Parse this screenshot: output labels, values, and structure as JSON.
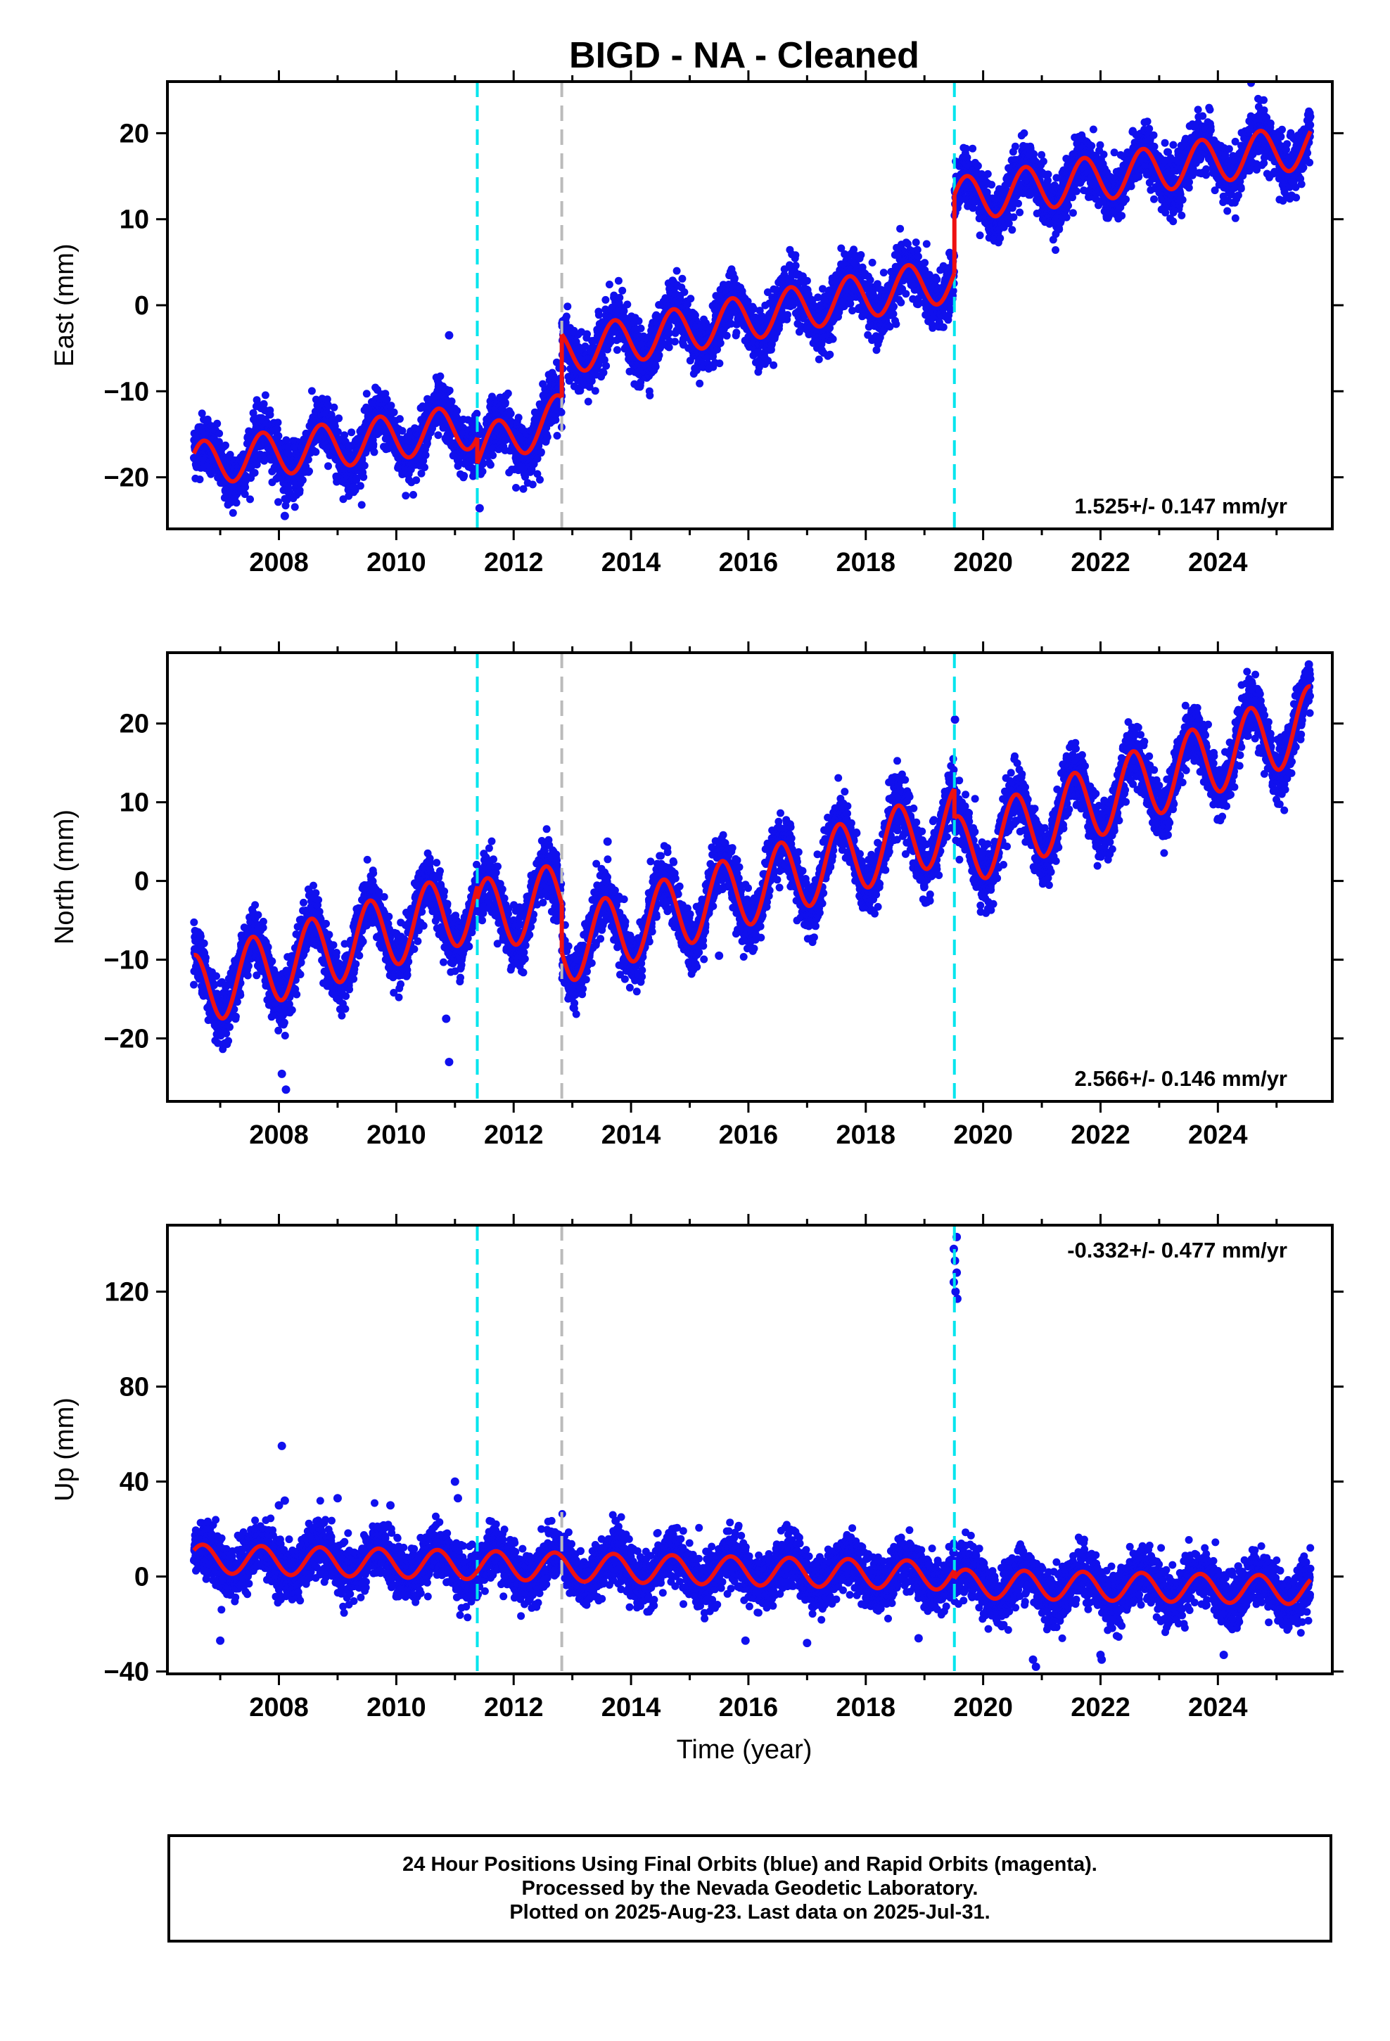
{
  "title": "BIGD  - NA - Cleaned",
  "xlabel": "Time (year)",
  "footer": {
    "line1": "24 Hour Positions Using Final Orbits (blue) and Rapid Orbits (magenta).",
    "line2": "Processed by the Nevada Geodetic Laboratory.",
    "line3": "Plotted on 2025-Aug-23. Last data on 2025-Jul-31."
  },
  "colors": {
    "points": "#1010ee",
    "model": "#ee1111",
    "cyan_line": "#00e5ee",
    "gray_line": "#bbbbbb"
  },
  "chart_data": [
    {
      "type": "scatter",
      "ylabel": "East (mm)",
      "ylim": [
        -26,
        26
      ],
      "xlim": [
        2006.1,
        2025.95
      ],
      "xticks": [
        2008,
        2010,
        2012,
        2014,
        2016,
        2018,
        2020,
        2022,
        2024
      ],
      "yticks": [
        -20,
        -10,
        0,
        10,
        20
      ],
      "rate": "1.525+/- 0.147 mm/yr",
      "rate_position": "bottom-right",
      "data_range": [
        2006.55,
        2025.58
      ],
      "vlines": [
        {
          "x": 2011.38,
          "style": "cyan"
        },
        {
          "x": 2012.82,
          "style": "gray"
        },
        {
          "x": 2019.51,
          "style": "cyan"
        }
      ],
      "model": {
        "segments": [
          {
            "from": 2006.55,
            "to": 2011.38,
            "start": -18.5,
            "slope": 0.93
          },
          {
            "from": 2011.38,
            "to": 2012.82,
            "start": -17.0,
            "slope": 2.9
          },
          {
            "from": 2012.82,
            "to": 2019.51,
            "start": -5.5,
            "slope": 1.28
          },
          {
            "from": 2019.51,
            "to": 2025.58,
            "start": 12.2,
            "slope": 1.05
          }
        ],
        "annual_amplitude": 2.6,
        "peak_phase": 0.72
      },
      "scatter_noise": 1.6,
      "outliers": [
        {
          "x": 2008.1,
          "y": -24.5
        },
        {
          "x": 2010.9,
          "y": -3.5
        },
        {
          "x": 2011.42,
          "y": -23.6
        }
      ]
    },
    {
      "type": "scatter",
      "ylabel": "North (mm)",
      "ylim": [
        -28,
        29
      ],
      "xlim": [
        2006.1,
        2025.95
      ],
      "xticks": [
        2008,
        2010,
        2012,
        2014,
        2016,
        2018,
        2020,
        2022,
        2024
      ],
      "yticks": [
        -20,
        -10,
        0,
        10,
        20
      ],
      "rate": "2.566+/- 0.146 mm/yr",
      "rate_position": "bottom-right",
      "data_range": [
        2006.55,
        2025.58
      ],
      "vlines": [
        {
          "x": 2011.38,
          "style": "cyan"
        },
        {
          "x": 2012.82,
          "style": "gray"
        },
        {
          "x": 2019.51,
          "style": "cyan"
        }
      ],
      "model": {
        "segments": [
          {
            "from": 2006.55,
            "to": 2011.38,
            "start": -14.0,
            "slope": 2.3
          },
          {
            "from": 2011.38,
            "to": 2012.82,
            "start": -4.5,
            "slope": 1.5
          },
          {
            "from": 2012.82,
            "to": 2019.51,
            "start": -8.5,
            "slope": 2.35
          },
          {
            "from": 2019.51,
            "to": 2025.58,
            "start": 3.5,
            "slope": 2.75
          }
        ],
        "annual_amplitude": 4.6,
        "peak_phase": 0.55
      },
      "scatter_noise": 1.8,
      "outliers": [
        {
          "x": 2008.12,
          "y": -26.5
        },
        {
          "x": 2008.05,
          "y": -24.5
        },
        {
          "x": 2010.85,
          "y": -17.5
        },
        {
          "x": 2010.9,
          "y": -23.0
        },
        {
          "x": 2013.6,
          "y": 5.0
        },
        {
          "x": 2015.5,
          "y": -9.5
        },
        {
          "x": 2019.52,
          "y": 20.5
        },
        {
          "x": 2025.55,
          "y": 27.5
        }
      ]
    },
    {
      "type": "scatter",
      "ylabel": "Up (mm)",
      "ylim": [
        -41,
        148
      ],
      "xlim": [
        2006.1,
        2025.95
      ],
      "xticks": [
        2008,
        2010,
        2012,
        2014,
        2016,
        2018,
        2020,
        2022,
        2024
      ],
      "yticks": [
        -40,
        0,
        40,
        80,
        120
      ],
      "rate": "-0.332+/- 0.477 mm/yr",
      "rate_position": "top-right",
      "data_range": [
        2006.55,
        2025.58
      ],
      "vlines": [
        {
          "x": 2011.38,
          "style": "cyan"
        },
        {
          "x": 2012.82,
          "style": "gray"
        },
        {
          "x": 2019.51,
          "style": "cyan"
        }
      ],
      "model": {
        "segments": [
          {
            "from": 2006.55,
            "to": 2019.51,
            "start": 7.5,
            "slope": -0.55
          },
          {
            "from": 2019.51,
            "to": 2025.58,
            "start": -3.0,
            "slope": -0.45
          }
        ],
        "annual_amplitude": 6.0,
        "peak_phase": 0.7
      },
      "scatter_noise": 5.5,
      "outliers": [
        {
          "x": 2008.05,
          "y": 55
        },
        {
          "x": 2008.0,
          "y": 30
        },
        {
          "x": 2008.1,
          "y": 32
        },
        {
          "x": 2009.0,
          "y": 33
        },
        {
          "x": 2009.9,
          "y": 30
        },
        {
          "x": 2007.0,
          "y": -27
        },
        {
          "x": 2011.0,
          "y": 40
        },
        {
          "x": 2011.05,
          "y": 33
        },
        {
          "x": 2015.95,
          "y": -27
        },
        {
          "x": 2017.0,
          "y": -28
        },
        {
          "x": 2018.9,
          "y": -26
        },
        {
          "x": 2019.55,
          "y": 143
        },
        {
          "x": 2019.5,
          "y": 138
        },
        {
          "x": 2019.52,
          "y": 133
        },
        {
          "x": 2019.55,
          "y": 128
        },
        {
          "x": 2019.5,
          "y": 124
        },
        {
          "x": 2019.53,
          "y": 120
        },
        {
          "x": 2019.56,
          "y": 117
        },
        {
          "x": 2020.85,
          "y": -35
        },
        {
          "x": 2020.9,
          "y": -38
        },
        {
          "x": 2022.0,
          "y": -33
        },
        {
          "x": 2022.02,
          "y": -35
        },
        {
          "x": 2024.1,
          "y": -33
        },
        {
          "x": 2025.5,
          "y": 6
        }
      ]
    }
  ]
}
